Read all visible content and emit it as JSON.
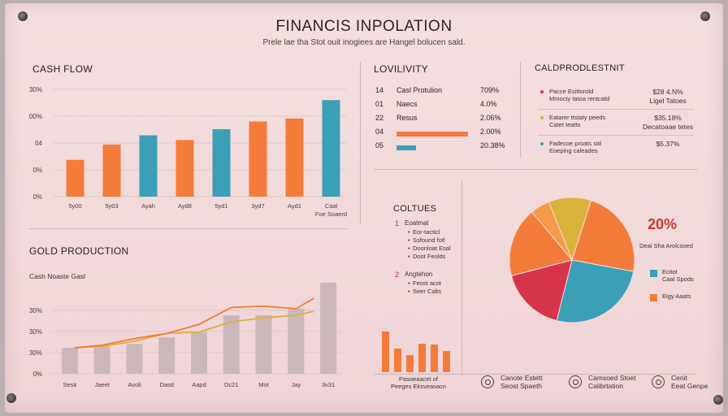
{
  "header": {
    "title": "FINANCIS INPOLATION",
    "subtitle": "Prele lae tha Stot ouit inogiees are Hangel bolucen sald."
  },
  "colors": {
    "orange": "#f47c3a",
    "teal": "#3c9fb8",
    "yellow": "#d9b23a",
    "red": "#d6344c",
    "grey_bar": "#cbb7ba"
  },
  "chart_data": [
    {
      "type": "bar",
      "title": "CASH FLOW",
      "categories": [
        "5y00",
        "5y03",
        "Ayah",
        "Ayd8",
        "5yd1",
        "3yd7",
        "Ayd1",
        "Caal\nFoe Soaerd"
      ],
      "values": [
        24,
        34,
        40,
        37,
        44,
        49,
        51,
        63
      ],
      "colors": [
        "#f47c3a",
        "#f47c3a",
        "#3c9fb8",
        "#f47c3a",
        "#3c9fb8",
        "#f47c3a",
        "#f47c3a",
        "#3c9fb8"
      ],
      "ytick_labels": [
        "0%",
        "0%",
        "04",
        "00%",
        "30%"
      ],
      "ylim": [
        0,
        70
      ]
    },
    {
      "type": "bar",
      "title": "GOLD PRODUCTION",
      "subtitle": "Cash Noaste Gasl",
      "categories": [
        "Sesit",
        "Jaeet",
        "Avoli",
        "Dasd",
        "Aapd",
        "Dc21",
        "Mot",
        "Jay",
        "3v31"
      ],
      "values": [
        20,
        21,
        23,
        28,
        32,
        45,
        45,
        50,
        70
      ],
      "ytick_labels": [
        "0%",
        "30%",
        "30%",
        "30%"
      ],
      "ylim": [
        0,
        75
      ],
      "series": [
        {
          "values": [
            0,
            0,
            0,
            0,
            0,
            0,
            0,
            0,
            0
          ],
          "color": "#cbb7ba",
          "kind": "bar"
        },
        {
          "values": [
            20,
            21,
            25,
            31,
            32,
            40,
            43,
            45,
            48
          ],
          "color": "#d9b23a",
          "kind": "line"
        },
        {
          "values": [
            20,
            22,
            27,
            31,
            38,
            51,
            52,
            50,
            58
          ],
          "color": "#f47c3a",
          "kind": "line"
        }
      ]
    },
    {
      "type": "pie",
      "values": [
        11,
        23,
        26,
        17,
        18,
        5
      ],
      "colors": [
        "#d9b23a",
        "#f47c3a",
        "#3c9fb8",
        "#d6344c",
        "#f47c3a",
        "#f59a4a"
      ],
      "annotation": "20%",
      "annotation_text": "Deai Sha Arolcsoed",
      "legend": [
        {
          "label": "Ecitot\nCaal Spods",
          "color": "#3c9fb8"
        },
        {
          "label": "Eigy Aaats",
          "color": "#f47c3a"
        }
      ]
    },
    {
      "type": "bar",
      "values": [
        50,
        29,
        21,
        35,
        34,
        26
      ],
      "color": "#f47c3a",
      "caption": "Pasoeaacet of\nPeeges Eksveasacn"
    }
  ],
  "liquidity": {
    "title": "LOVILIVITY",
    "rows": [
      {
        "num": "14",
        "label": "Casl Protulion",
        "value": "709%"
      },
      {
        "num": "01",
        "label": "Naecs",
        "value": "4.0%"
      },
      {
        "num": "22",
        "label": "Resus",
        "value": "2.06%"
      },
      {
        "num": "04",
        "label": "",
        "value": "2.00%"
      },
      {
        "num": "05",
        "label": "",
        "value": "20.38%"
      }
    ],
    "bars": [
      {
        "value": 0.88,
        "color": "#f47c3a"
      },
      {
        "value": 0.24,
        "color": "#3c9fb8"
      }
    ]
  },
  "gold_dist": {
    "title": "CALDPRODLESTNIT",
    "rows": [
      {
        "dot": "#d6344c",
        "text": "Pacce Esittorold\nMmocty tatoa rentcatd",
        "value": "$28 4.N%\nLigel Tatoes"
      },
      {
        "dot": "#d9b23a",
        "text": "Eatarer ttstaty peeds\nCatet teatts",
        "value": "$35.18%\nDecatoaae tetes"
      },
      {
        "dot": "#3c9fb8",
        "text": "Fadecoe proats sid\nEoeping caleades",
        "value": "$5.37%"
      }
    ]
  },
  "cultures": {
    "title": "COLTUES",
    "groups": [
      {
        "num": "1",
        "head": "Eoatmal",
        "items": [
          "Eor-tacticl",
          "Ssfound fotl",
          "Doonloat Esal",
          "Doot Feolds"
        ]
      },
      {
        "num": "2",
        "head": "Angtehon",
        "items": [
          "Feost acot",
          "Seer Calts"
        ]
      }
    ]
  },
  "footer": {
    "items": [
      {
        "icon": "coin-icon",
        "text": "Canote Estett\nSeost Spaeth"
      },
      {
        "icon": "cycle-icon",
        "text": "Camsoed Stoet\nCalibrtation"
      },
      {
        "icon": "gear-icon",
        "text": "Cenit\nEeat Genpe"
      }
    ]
  }
}
